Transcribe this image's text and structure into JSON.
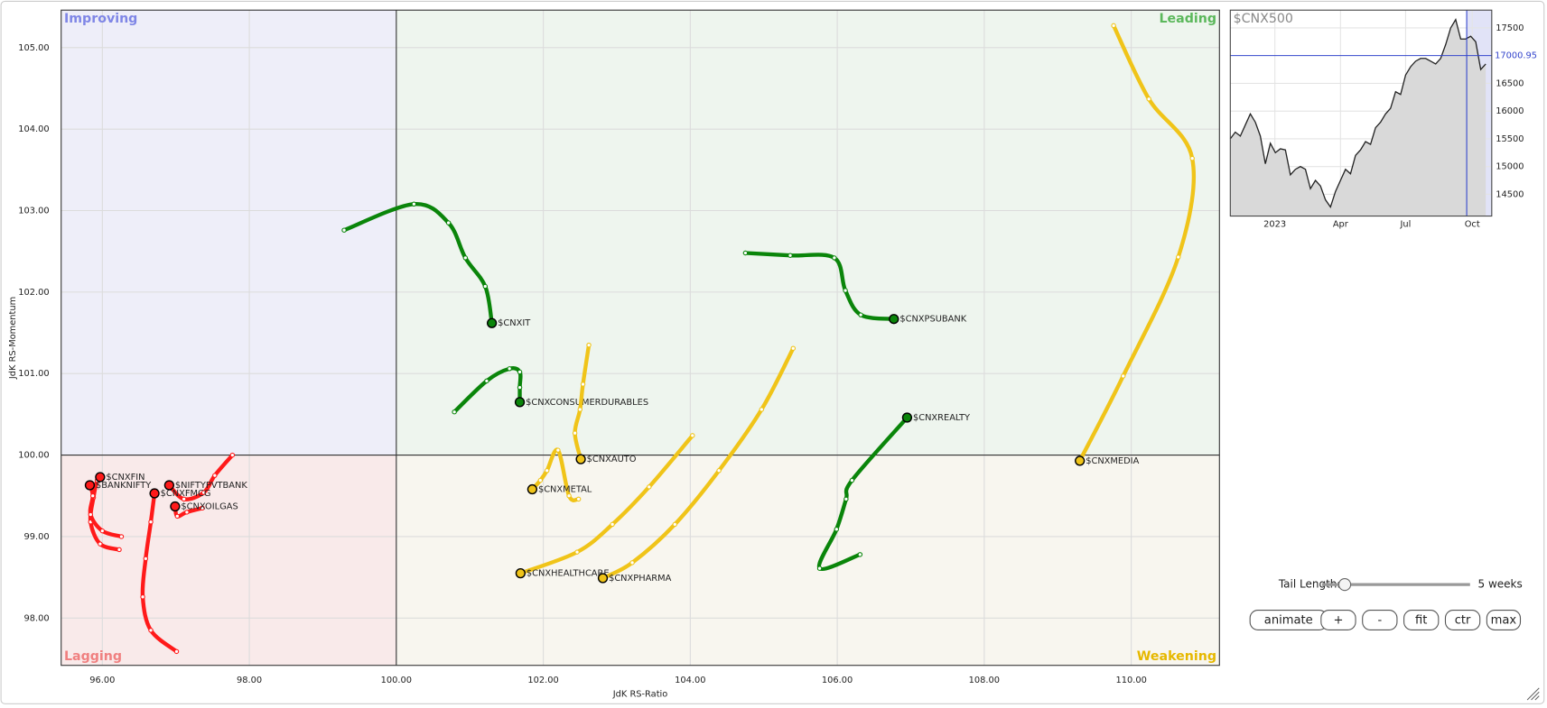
{
  "chart_data": [
    {
      "type": "rrg",
      "x_label": "JdK RS-Ratio",
      "y_label": "JdK RS-Momentum",
      "xlim": [
        95.44,
        111.2
      ],
      "ylim": [
        97.42,
        105.46
      ],
      "center": [
        100,
        100
      ],
      "grid": true,
      "xticks": [
        {
          "value": 96,
          "label": "96.00"
        },
        {
          "value": 98,
          "label": "98.00"
        },
        {
          "value": 100,
          "label": "100.00"
        },
        {
          "value": 102,
          "label": "102.00"
        },
        {
          "value": 104,
          "label": "104.00"
        },
        {
          "value": 106,
          "label": "106.00"
        },
        {
          "value": 108,
          "label": "108.00"
        },
        {
          "value": 110,
          "label": "110.00"
        }
      ],
      "yticks": [
        {
          "value": 98,
          "label": "98.00"
        },
        {
          "value": 99,
          "label": "99.00"
        },
        {
          "value": 100,
          "label": "100.00"
        },
        {
          "value": 101,
          "label": "101.00"
        },
        {
          "value": 102,
          "label": "102.00"
        },
        {
          "value": 103,
          "label": "103.00"
        },
        {
          "value": 104,
          "label": "104.00"
        },
        {
          "value": 105,
          "label": "105.00"
        }
      ],
      "quadrants": [
        {
          "name": "Improving",
          "corner": "top-left",
          "color": "#7f86e6",
          "background": "#eeeef9"
        },
        {
          "name": "Leading",
          "corner": "top-right",
          "color": "#5cb85c",
          "background": "#eef5ee"
        },
        {
          "name": "Weakening",
          "corner": "bottom-right",
          "color": "#e6b800",
          "background": "#f8f6ef"
        },
        {
          "name": "Lagging",
          "corner": "bottom-left",
          "color": "#f08080",
          "background": "#f9eaea"
        }
      ],
      "series": [
        {
          "name": "$CNXIT",
          "color": "#0a850a",
          "x": [
            99.29,
            100.24,
            100.71,
            100.94,
            101.21,
            101.3
          ],
          "y": [
            102.76,
            103.08,
            102.85,
            102.42,
            102.07,
            101.62
          ]
        },
        {
          "name": "$CNXCONSUMERDURABLES",
          "color": "#0a850a",
          "x": [
            100.79,
            101.23,
            101.54,
            101.68,
            101.68,
            101.68
          ],
          "y": [
            100.53,
            100.91,
            101.06,
            101.02,
            100.83,
            100.65
          ]
        },
        {
          "name": "$CNXPSUBANK",
          "color": "#0a850a",
          "x": [
            104.75,
            105.36,
            105.96,
            106.11,
            106.32,
            106.77
          ],
          "y": [
            102.48,
            102.45,
            102.42,
            102.02,
            101.72,
            101.67
          ]
        },
        {
          "name": "$CNXREALTY",
          "color": "#0a850a",
          "x": [
            106.31,
            105.76,
            105.99,
            106.12,
            106.2,
            106.95
          ],
          "y": [
            98.78,
            98.61,
            99.09,
            99.46,
            99.69,
            100.46
          ]
        },
        {
          "name": "$CNXMEDIA",
          "color": "#f0c419",
          "x": [
            109.76,
            110.24,
            110.83,
            110.64,
            109.89,
            109.3
          ],
          "y": [
            105.27,
            104.37,
            103.64,
            102.43,
            100.97,
            99.93
          ]
        },
        {
          "name": "$CNXAUTO",
          "color": "#f0c419",
          "x": [
            102.62,
            102.54,
            102.5,
            102.43,
            102.51
          ],
          "y": [
            101.35,
            100.87,
            100.56,
            100.27,
            99.95
          ]
        },
        {
          "name": "$CNXMETAL",
          "color": "#f0c419",
          "x": [
            102.48,
            102.35,
            102.2,
            102.05,
            101.96,
            101.85
          ],
          "y": [
            99.46,
            99.5,
            100.06,
            99.81,
            99.69,
            99.58
          ]
        },
        {
          "name": "$CNXHEALTHCARE",
          "color": "#f0c419",
          "x": [
            104.03,
            103.44,
            102.94,
            102.46,
            101.69
          ],
          "y": [
            100.24,
            99.61,
            99.15,
            98.81,
            98.55
          ]
        },
        {
          "name": "$CNXPHARMA",
          "color": "#f0c419",
          "x": [
            105.4,
            104.97,
            104.39,
            103.79,
            103.21,
            102.81
          ],
          "y": [
            101.31,
            100.56,
            99.81,
            99.15,
            98.68,
            98.49
          ]
        },
        {
          "name": "$CNXFIN",
          "color": "#ff1a1a",
          "x": [
            96.23,
            95.97,
            95.84,
            95.88,
            95.93,
            95.97
          ],
          "y": [
            98.84,
            98.91,
            99.18,
            99.48,
            99.69,
            99.73
          ]
        },
        {
          "name": "$BANKNIFTY",
          "color": "#ff1a1a",
          "x": [
            96.26,
            96.0,
            95.84,
            95.87,
            95.83
          ],
          "y": [
            99.0,
            99.07,
            99.27,
            99.5,
            99.63
          ]
        },
        {
          "name": "$NIFTYPVTBANK",
          "color": "#ff1a1a",
          "x": [
            97.77,
            97.53,
            97.38,
            97.11,
            96.91
          ],
          "y": [
            100.0,
            99.75,
            99.54,
            99.46,
            99.63
          ]
        },
        {
          "name": "$CNXFMCG",
          "color": "#ff1a1a",
          "x": [
            97.01,
            96.66,
            96.55,
            96.59,
            96.66,
            96.71
          ],
          "y": [
            97.59,
            97.85,
            98.26,
            98.73,
            99.18,
            99.53
          ]
        },
        {
          "name": "$CNXOILGAS",
          "color": "#ff1a1a",
          "x": [
            97.36,
            97.15,
            97.02,
            96.99
          ],
          "y": [
            99.35,
            99.3,
            99.25,
            99.37
          ]
        }
      ]
    },
    {
      "type": "area",
      "title": "$CNX500",
      "color": "#222222",
      "fill": "#d9d9d9",
      "grid": true,
      "xlim": [
        0,
        52.2
      ],
      "ylim": [
        14107,
        17821
      ],
      "xticks": [
        {
          "value": 8.9,
          "label": "2023"
        },
        {
          "value": 22,
          "label": "Apr"
        },
        {
          "value": 35,
          "label": "Jul"
        },
        {
          "value": 48.3,
          "label": "Oct"
        }
      ],
      "yticks": [
        14500,
        15000,
        15500,
        16000,
        16500,
        17500
      ],
      "reference_line": {
        "value": 17000.95,
        "color": "#3344cc"
      },
      "highlight": {
        "from": 47.2,
        "color": "#3344cc"
      },
      "values": [
        15500,
        15620,
        15550,
        15750,
        15950,
        15800,
        15550,
        15050,
        15420,
        15250,
        15320,
        15300,
        14850,
        14950,
        15000,
        14950,
        14600,
        14750,
        14650,
        14400,
        14270,
        14550,
        14750,
        14950,
        14870,
        15200,
        15300,
        15450,
        15400,
        15700,
        15800,
        15950,
        16050,
        16350,
        16300,
        16650,
        16800,
        16900,
        16950,
        16950,
        16900,
        16850,
        16950,
        17200,
        17500,
        17650,
        17300,
        17300,
        17350,
        17250,
        16750,
        16850
      ]
    }
  ],
  "controls": {
    "tail_label": "Tail Length:",
    "tail_value": "5 weeks",
    "buttons": [
      "animate",
      "+",
      "-",
      "fit",
      "ctr",
      "max"
    ]
  }
}
